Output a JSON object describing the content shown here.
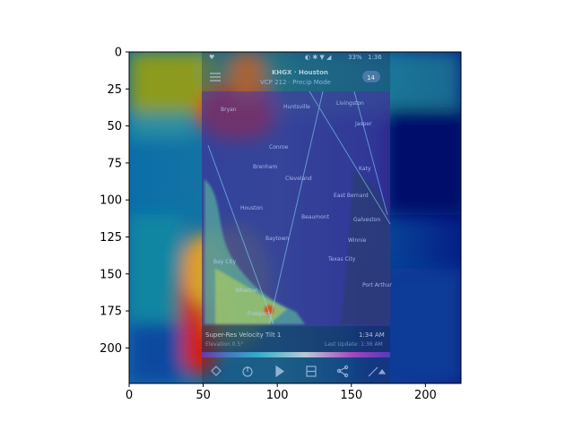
{
  "figure": {
    "x_ticks": [
      "0",
      "50",
      "100",
      "150",
      "200"
    ],
    "y_ticks": [
      "0",
      "25",
      "50",
      "75",
      "100",
      "125",
      "150",
      "175",
      "200"
    ],
    "x_tick_values": [
      0,
      50,
      100,
      150,
      200
    ],
    "y_tick_values": [
      0,
      25,
      50,
      75,
      100,
      125,
      150,
      175,
      200
    ],
    "xlim": [
      0,
      224
    ],
    "ylim": [
      224,
      0
    ]
  },
  "app": {
    "status_bar": {
      "battery": "33%",
      "time": "1:36"
    },
    "header": {
      "station": "KHGX · Houston",
      "product": "VCP 212 · Precip Mode",
      "badge": "14"
    },
    "map_labels": [
      "Bryan",
      "Huntsville",
      "Livingston",
      "Conroe",
      "Jasper",
      "Brenham",
      "Cleveland",
      "Katy",
      "Houston",
      "Beaumont",
      "East Bernard",
      "Baytown",
      "Winnie",
      "Wharton",
      "Texas City",
      "Galveston",
      "Bay City",
      "Freeport",
      "Port Arthur"
    ],
    "info": {
      "product_title": "Super-Res Velocity Tilt 1",
      "time": "1:34 AM",
      "elevation": "Elevation 0.5°",
      "last_update": "Last Update: 1:36 AM"
    },
    "toolbar": [
      "layers-icon",
      "radar-icon",
      "play-icon",
      "grid-icon",
      "share-icon",
      "draw-icon"
    ]
  },
  "colors": {
    "heat_low": "#00007a",
    "heat_mid": "#0e8fa8",
    "heat_high": "#e03010",
    "heat_warm": "#c8a800",
    "radar_purple": "#5a2ab8"
  }
}
